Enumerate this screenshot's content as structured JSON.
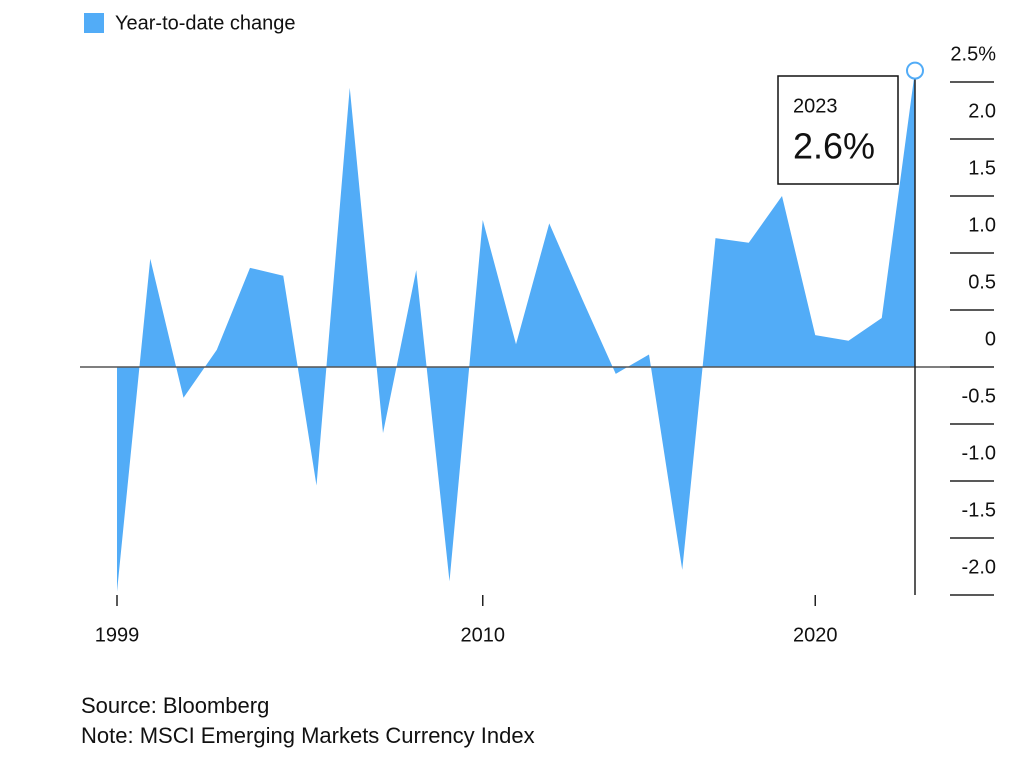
{
  "chart_data": {
    "type": "area",
    "series": [
      {
        "name": "Year-to-date change",
        "color": "#52acf7",
        "values": [
          -1.97,
          0.95,
          -0.27,
          0.15,
          0.87,
          0.8,
          -1.04,
          2.45,
          -0.58,
          0.85,
          -1.88,
          1.29,
          0.2,
          1.26,
          0.59,
          -0.06,
          0.11,
          -1.78,
          1.13,
          1.09,
          1.5,
          0.28,
          0.23,
          0.43,
          2.6
        ],
        "value_labels": [
          null,
          null,
          null,
          null,
          null,
          null,
          null,
          null,
          null,
          null,
          null,
          null,
          null,
          null,
          null,
          null,
          null,
          null,
          null,
          null,
          null,
          null,
          null,
          null,
          "2.6%"
        ]
      }
    ],
    "x": [
      1999,
      2000,
      2001,
      2002,
      2003,
      2004,
      2005,
      2006,
      2007,
      2008,
      2009,
      2010,
      2011,
      2012,
      2013,
      2014,
      2015,
      2016,
      2017,
      2018,
      2019,
      2020,
      2021,
      2022,
      2023
    ],
    "xlim": [
      1999,
      2023
    ],
    "xticks": [
      1999,
      2010,
      2020
    ],
    "ylim": [
      -2,
      2.5
    ],
    "yticks": [
      {
        "value": 2.5,
        "label": "2.5%"
      },
      {
        "value": 2,
        "label": "2.0"
      },
      1.5,
      {
        "value": 1,
        "label": "1.0"
      },
      0.5,
      0,
      -0.5,
      {
        "value": -1,
        "label": "-1.0"
      },
      -1.5,
      {
        "value": -2,
        "label": "-2.0"
      }
    ],
    "notes": [
      "Source: Bloomberg",
      "Note: MSCI Emerging Markets Currency Index"
    ]
  }
}
